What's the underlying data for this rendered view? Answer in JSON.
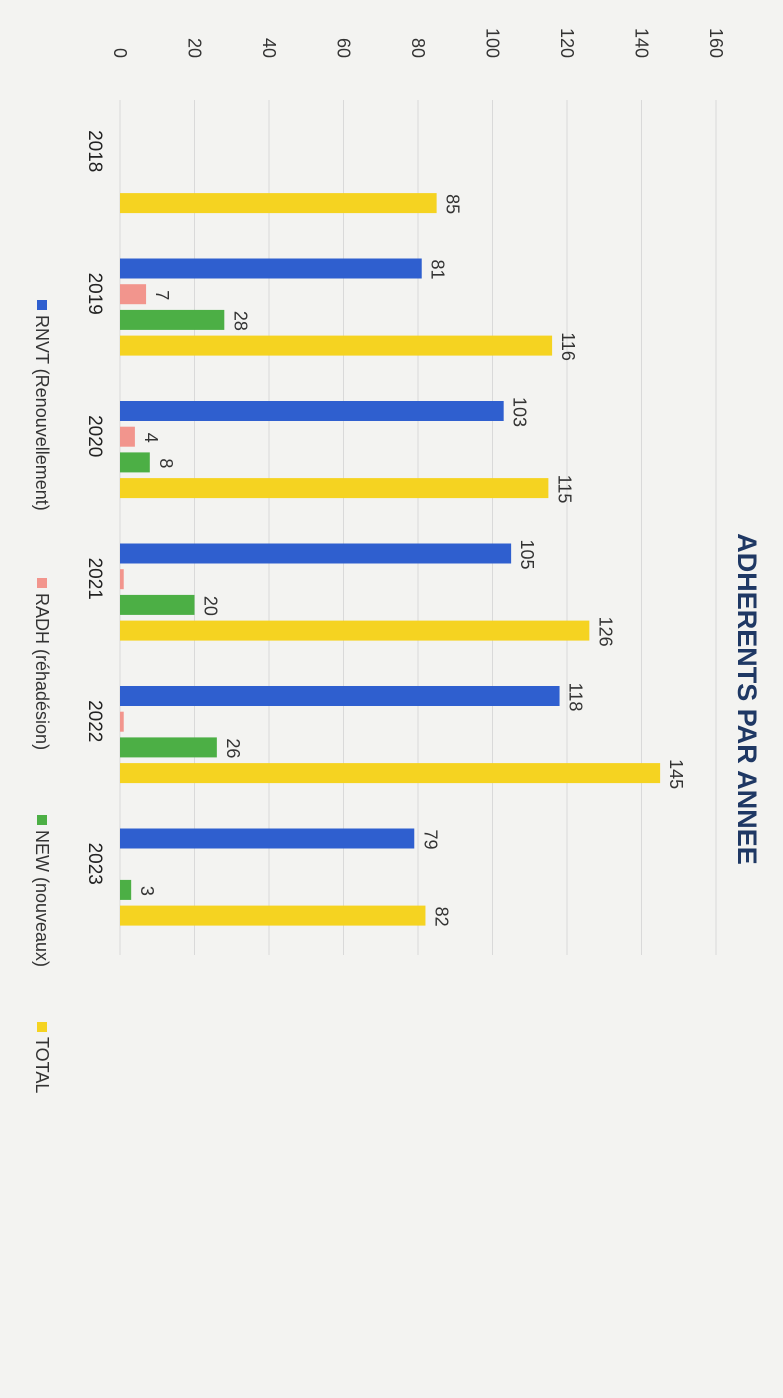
{
  "chart_data": {
    "type": "bar",
    "orientation": "horizontal",
    "title": "ADHERENTS PAR ANNEE",
    "categories": [
      "2018",
      "2019",
      "2020",
      "2021",
      "2022",
      "2023"
    ],
    "series": [
      {
        "name": "RNVT (Renouvellement)",
        "color": "#2f5fcf",
        "values": [
          null,
          81,
          103,
          105,
          118,
          79
        ],
        "labels": [
          "",
          "81",
          "103",
          "105",
          "118",
          "79"
        ]
      },
      {
        "name": "RADH (réhadésion)",
        "color": "#f2958d",
        "values": [
          null,
          7,
          4,
          1,
          1,
          null
        ],
        "labels": [
          "",
          "7",
          "4",
          "",
          "",
          ""
        ]
      },
      {
        "name": "NEW (nouveaux)",
        "color": "#4caf45",
        "values": [
          null,
          28,
          8,
          20,
          26,
          3
        ],
        "labels": [
          "",
          "28",
          "8",
          "20",
          "26",
          "3"
        ]
      },
      {
        "name": "TOTAL",
        "color": "#f5d321",
        "values": [
          85,
          116,
          115,
          126,
          145,
          82
        ],
        "labels": [
          "85",
          "116",
          "115",
          "126",
          "145",
          "82"
        ]
      }
    ],
    "xlim": [
      0,
      160
    ],
    "ticks": [
      "0",
      "20",
      "40",
      "60",
      "80",
      "100",
      "120",
      "140",
      "160"
    ],
    "grid": true,
    "legend_position": "bottom"
  }
}
